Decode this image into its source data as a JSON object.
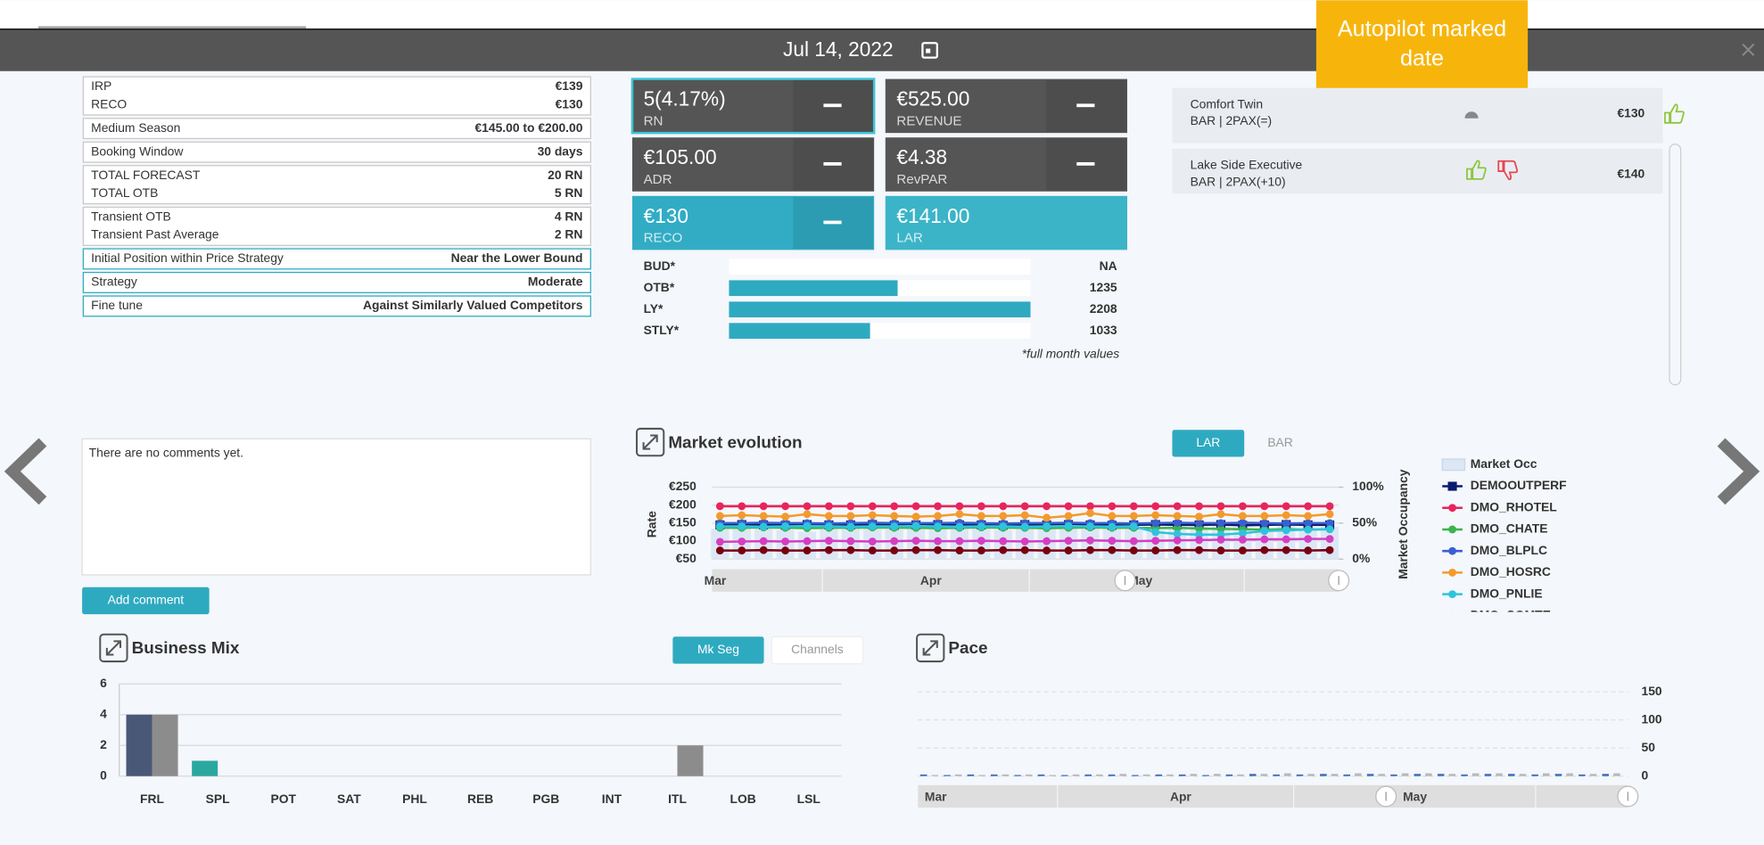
{
  "header": {
    "date": "Jul 14, 2022"
  },
  "callout": {
    "text": "Autopilot marked date"
  },
  "info_groups": [
    {
      "rows": [
        {
          "label": "IRP",
          "value": "€139"
        },
        {
          "label": "RECO",
          "value": "€130"
        }
      ]
    },
    {
      "rows": [
        {
          "label": "Medium Season",
          "value": "€145.00 to €200.00"
        }
      ]
    },
    {
      "rows": [
        {
          "label": "Booking Window",
          "value": "30 days"
        }
      ]
    },
    {
      "rows": [
        {
          "label": "TOTAL FORECAST",
          "value": "20 RN"
        },
        {
          "label": "TOTAL OTB",
          "value": "5 RN"
        }
      ]
    },
    {
      "rows": [
        {
          "label": "Transient OTB",
          "value": "4 RN"
        },
        {
          "label": "Transient Past Average",
          "value": "2 RN"
        }
      ]
    },
    {
      "rows": [
        {
          "label": "Initial Position within Price Strategy",
          "value": "Near the Lower Bound"
        }
      ],
      "highlighted": true
    },
    {
      "rows": [
        {
          "label": "Strategy",
          "value": "Moderate"
        }
      ],
      "highlighted": true
    },
    {
      "rows": [
        {
          "label": "Fine tune",
          "value": "Against Similarly Valued Competitors"
        }
      ],
      "highlighted": true
    }
  ],
  "kpis": [
    {
      "value": "5(4.17%)",
      "label": "RN",
      "color": "#555555",
      "button": true,
      "selected": true
    },
    {
      "value": "€525.00",
      "label": "REVENUE",
      "color": "#555555",
      "button": true
    },
    {
      "value": "€105.00",
      "label": "ADR",
      "color": "#555555",
      "button": true
    },
    {
      "value": "€4.38",
      "label": "RevPAR",
      "color": "#555555",
      "button": true
    },
    {
      "value": "€130",
      "label": "RECO",
      "color": "#31acc4",
      "button": true
    },
    {
      "value": "€141.00",
      "label": "LAR",
      "color": "#3cb4c8",
      "button": false
    }
  ],
  "monthly": {
    "type": "bar",
    "categories": [
      "BUD*",
      "OTB*",
      "LY*",
      "STLY*"
    ],
    "values": [
      null,
      1235,
      2208,
      1033
    ],
    "value_labels": [
      "NA",
      "1235",
      "2208",
      "1033"
    ],
    "color": "#2eaac0",
    "xlim": [
      0,
      2208
    ],
    "note": "*full month values"
  },
  "rooms": [
    {
      "name": "Comfort Twin",
      "rate": "BAR | 2PAX(=)",
      "price": "€130"
    },
    {
      "name": "Lake Side Executive",
      "rate": "BAR | 2PAX(+10)",
      "price": "€140"
    }
  ],
  "comments": {
    "empty_text": "There are no comments yet.",
    "button": "Add comment"
  },
  "market_evolution": {
    "type": "line",
    "title": "Market evolution",
    "toggles": [
      "LAR",
      "BAR"
    ],
    "active_toggle": 0,
    "ylabel": "Rate",
    "y2label": "Market Occupancy",
    "ylim": [
      50,
      250
    ],
    "yticks": [
      {
        "value": 50,
        "label": "€50"
      },
      {
        "value": 100,
        "label": "€100"
      },
      {
        "value": 150,
        "label": "€150"
      },
      {
        "value": 200,
        "label": "€200"
      },
      {
        "value": 250,
        "label": "€250"
      }
    ],
    "y2lim": [
      0,
      100
    ],
    "y2ticks": [
      {
        "value": 0,
        "label": "0%"
      },
      {
        "value": 50,
        "label": "50%"
      },
      {
        "value": 100,
        "label": "100%"
      }
    ],
    "grid": true,
    "months": [
      "Mar",
      "Apr",
      "May"
    ],
    "series": [
      {
        "name": "Market Occ",
        "type": "bar",
        "axis": "y2",
        "color": "#dce7f5",
        "values": [
          42,
          44,
          46,
          40,
          38,
          45,
          47,
          43,
          41,
          44,
          46,
          48,
          42,
          40,
          45,
          47,
          43,
          44,
          46,
          42,
          40,
          45,
          47,
          49,
          44,
          42,
          46,
          43,
          45
        ]
      },
      {
        "name": "DEMOOUTPERF",
        "color": "#0c1a6e",
        "marker": "square",
        "values": [
          145,
          146,
          145,
          144,
          146,
          145,
          145,
          146,
          144,
          145,
          146,
          145,
          145,
          144,
          146,
          145,
          146,
          145,
          144,
          145,
          146,
          145,
          145,
          146,
          144,
          145,
          146,
          145,
          145
        ]
      },
      {
        "name": "DMO_RHOTEL",
        "color": "#e8245c",
        "values": [
          197,
          197,
          197,
          197,
          197,
          197,
          197,
          197,
          197,
          197,
          197,
          197,
          197,
          197,
          197,
          197,
          197,
          197,
          197,
          197,
          197,
          197,
          197,
          197,
          197,
          197,
          197,
          197,
          197
        ]
      },
      {
        "name": "DMO_CHATE",
        "color": "#3cb44b",
        "values": [
          137,
          137,
          138,
          137,
          136,
          137,
          137,
          138,
          137,
          137,
          136,
          137,
          138,
          137,
          137,
          136,
          137,
          138,
          137,
          137,
          136,
          137,
          135,
          134,
          133,
          132,
          133,
          132,
          133
        ]
      },
      {
        "name": "DMO_BLPLC",
        "color": "#3a5fcf",
        "values": [
          150,
          150,
          151,
          150,
          150,
          149,
          150,
          151,
          150,
          150,
          150,
          151,
          150,
          149,
          150,
          150,
          151,
          150,
          150,
          149,
          150,
          151,
          150,
          150,
          151,
          150,
          149,
          150,
          150
        ]
      },
      {
        "name": "DMO_HOSRC",
        "color": "#f39a2c",
        "values": [
          170,
          172,
          170,
          168,
          175,
          170,
          170,
          172,
          170,
          168,
          170,
          175,
          170,
          170,
          172,
          165,
          170,
          178,
          170,
          170,
          172,
          170,
          168,
          175,
          170,
          170,
          172,
          170,
          175
        ]
      },
      {
        "name": "DMO_PNLIE",
        "color": "#2ec4dc",
        "values": [
          141,
          141,
          140,
          141,
          142,
          141,
          140,
          141,
          141,
          142,
          141,
          140,
          141,
          141,
          140,
          141,
          142,
          141,
          140,
          141,
          125,
          120,
          118,
          118,
          122,
          128,
          130,
          132,
          133
        ]
      },
      {
        "name": "DMO_COMTE",
        "color": "#d63ec2",
        "values": [
          98,
          99,
          100,
          99,
          100,
          101,
          100,
          99,
          100,
          101,
          100,
          100,
          101,
          100,
          99,
          100,
          101,
          102,
          101,
          100,
          101,
          102,
          103,
          104,
          104,
          105,
          105,
          106,
          106
        ]
      },
      {
        "color": "#7a0010",
        "values": [
          74,
          74,
          75,
          74,
          74,
          75,
          75,
          74,
          74,
          75,
          75,
          74,
          74,
          75,
          75,
          74,
          74,
          75,
          75,
          74,
          74,
          75,
          75,
          74,
          74,
          75,
          75,
          74,
          75
        ]
      }
    ]
  },
  "business_mix": {
    "type": "bar",
    "title": "Business Mix",
    "toggles": [
      "Mk Seg",
      "Channels"
    ],
    "active_toggle": 0,
    "categories": [
      "FRL",
      "SPL",
      "POT",
      "SAT",
      "PHL",
      "REB",
      "PGB",
      "INT",
      "ITL",
      "LOB",
      "LSL"
    ],
    "ylim": [
      0,
      6
    ],
    "yticks": [
      0,
      2,
      4,
      6
    ],
    "grid": true,
    "series": [
      {
        "colors": [
          "#4a5878",
          "#2aa8a0",
          "#4a5878",
          "#4a5878",
          "#4a5878",
          "#4a5878",
          "#4a5878",
          "#4a5878",
          "#4a5878",
          "#4a5878",
          "#4a5878"
        ],
        "values": [
          4,
          1,
          0,
          0,
          0,
          0,
          0,
          0,
          0,
          0,
          0
        ]
      },
      {
        "color": "#8c8c8c",
        "values": [
          4,
          0,
          0,
          0,
          0,
          0,
          0,
          0,
          2,
          0,
          0
        ]
      }
    ]
  },
  "pace": {
    "type": "bar",
    "title": "Pace",
    "ylim": [
      0,
      150
    ],
    "yticks": [
      0,
      50,
      100,
      150
    ],
    "grid": true,
    "months": [
      "Mar",
      "Apr",
      "May"
    ],
    "series": [
      {
        "color": "#3b6fc6",
        "values": [
          3,
          2,
          3,
          3,
          2,
          3,
          2,
          3,
          3,
          2,
          3,
          3,
          2,
          3,
          4,
          3,
          3,
          4,
          3,
          4,
          3,
          4,
          4,
          3,
          4,
          4,
          3,
          4,
          3,
          4
        ]
      },
      {
        "color": "#b8b8b8",
        "values": [
          2,
          3,
          2,
          3,
          3,
          2,
          3,
          3,
          4,
          3,
          3,
          4,
          4,
          3,
          4,
          5,
          4,
          4,
          5,
          4,
          5,
          5,
          4,
          5,
          5,
          4,
          5,
          5,
          4,
          5
        ]
      }
    ]
  }
}
